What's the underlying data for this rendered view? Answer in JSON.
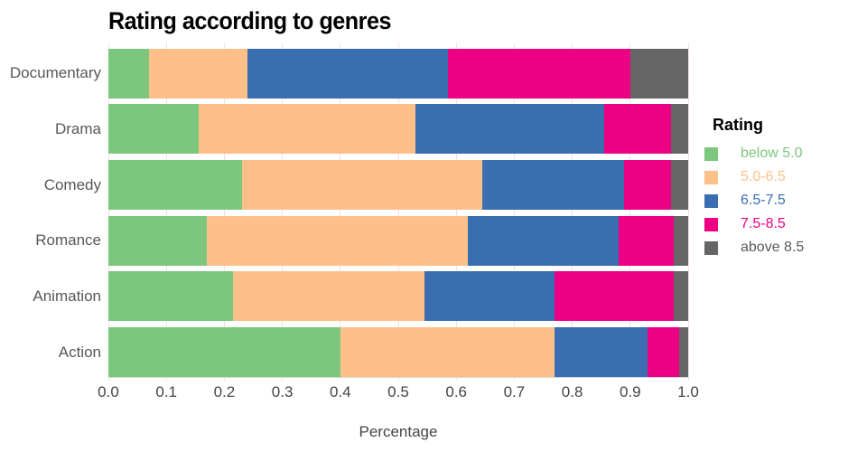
{
  "title": "Rating according to genres",
  "xlabel": "Percentage",
  "legend_title": "Rating",
  "chart_data": {
    "type": "bar",
    "orientation": "horizontal",
    "stacked": true,
    "title": "Rating according to genres",
    "xlabel": "Percentage",
    "xlim": [
      0.0,
      1.0
    ],
    "xticks": [
      "0.0",
      "0.1",
      "0.2",
      "0.3",
      "0.4",
      "0.5",
      "0.6",
      "0.7",
      "0.8",
      "0.9",
      "1.0"
    ],
    "grid": true,
    "legend_position": "right",
    "legend_title": "Rating",
    "categories": [
      "Documentary",
      "Drama",
      "Comedy",
      "Romance",
      "Animation",
      "Action"
    ],
    "series": [
      {
        "name": "below 5.0",
        "color": "#7CC67E",
        "label_color": "#7CC67E",
        "values": [
          0.07,
          0.155,
          0.23,
          0.17,
          0.215,
          0.4
        ]
      },
      {
        "name": "5.0-6.5",
        "color": "#FDC089",
        "label_color": "#FDC089",
        "values": [
          0.17,
          0.375,
          0.415,
          0.45,
          0.33,
          0.37
        ]
      },
      {
        "name": "6.5-7.5",
        "color": "#3A6EB0",
        "label_color": "#3A6EB0",
        "values": [
          0.345,
          0.325,
          0.245,
          0.26,
          0.225,
          0.16
        ]
      },
      {
        "name": "7.5-8.5",
        "color": "#EC0084",
        "label_color": "#EC0084",
        "values": [
          0.315,
          0.115,
          0.08,
          0.095,
          0.205,
          0.055
        ]
      },
      {
        "name": "above 8.5",
        "color": "#666666",
        "label_color": "#595959",
        "values": [
          0.1,
          0.03,
          0.03,
          0.025,
          0.025,
          0.015
        ]
      }
    ],
    "colors": {
      "gridline": "#F6DEE3",
      "axis_line": "#D8D8D8",
      "tick_label": "#444444",
      "category_label": "#575757",
      "title": "#000000"
    }
  }
}
